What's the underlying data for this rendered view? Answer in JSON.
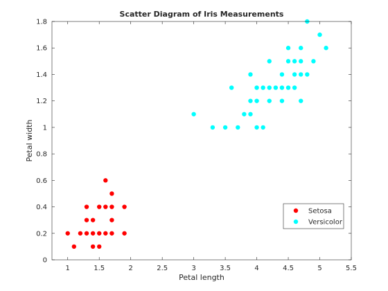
{
  "chart_data": {
    "type": "scatter",
    "title": "Scatter Diagram of Iris Measurements",
    "xlabel": "Petal length",
    "ylabel": "Petal width",
    "xlim": [
      0.75,
      5.5
    ],
    "ylim": [
      0,
      1.8
    ],
    "xticks": [
      "1",
      "1.5",
      "2",
      "2.5",
      "3",
      "3.5",
      "4",
      "4.5",
      "5",
      "5.5"
    ],
    "yticks": [
      "0",
      "0.2",
      "0.4",
      "0.6",
      "0.8",
      "1",
      "1.2",
      "1.4",
      "1.6",
      "1.8"
    ],
    "grid": false,
    "legend_position": "bottom-right",
    "series": [
      {
        "name": "Setosa",
        "color": "#ff0000",
        "points": [
          [
            1.0,
            0.2
          ],
          [
            1.1,
            0.1
          ],
          [
            1.2,
            0.2
          ],
          [
            1.3,
            0.2
          ],
          [
            1.3,
            0.3
          ],
          [
            1.3,
            0.4
          ],
          [
            1.4,
            0.1
          ],
          [
            1.4,
            0.2
          ],
          [
            1.4,
            0.3
          ],
          [
            1.5,
            0.1
          ],
          [
            1.5,
            0.2
          ],
          [
            1.5,
            0.4
          ],
          [
            1.6,
            0.2
          ],
          [
            1.6,
            0.4
          ],
          [
            1.6,
            0.6
          ],
          [
            1.7,
            0.2
          ],
          [
            1.7,
            0.3
          ],
          [
            1.7,
            0.4
          ],
          [
            1.7,
            0.5
          ],
          [
            1.9,
            0.2
          ],
          [
            1.9,
            0.4
          ]
        ]
      },
      {
        "name": "Versicolor",
        "color": "#00ffff",
        "points": [
          [
            3.0,
            1.1
          ],
          [
            3.3,
            1.0
          ],
          [
            3.5,
            1.0
          ],
          [
            3.6,
            1.3
          ],
          [
            3.7,
            1.0
          ],
          [
            3.8,
            1.1
          ],
          [
            3.9,
            1.1
          ],
          [
            3.9,
            1.2
          ],
          [
            3.9,
            1.4
          ],
          [
            4.0,
            1.0
          ],
          [
            4.0,
            1.2
          ],
          [
            4.0,
            1.3
          ],
          [
            4.1,
            1.0
          ],
          [
            4.1,
            1.3
          ],
          [
            4.2,
            1.2
          ],
          [
            4.2,
            1.3
          ],
          [
            4.2,
            1.5
          ],
          [
            4.3,
            1.3
          ],
          [
            4.4,
            1.2
          ],
          [
            4.4,
            1.3
          ],
          [
            4.4,
            1.4
          ],
          [
            4.5,
            1.3
          ],
          [
            4.5,
            1.5
          ],
          [
            4.5,
            1.6
          ],
          [
            4.6,
            1.3
          ],
          [
            4.6,
            1.4
          ],
          [
            4.6,
            1.5
          ],
          [
            4.7,
            1.2
          ],
          [
            4.7,
            1.4
          ],
          [
            4.7,
            1.5
          ],
          [
            4.7,
            1.6
          ],
          [
            4.8,
            1.4
          ],
          [
            4.8,
            1.8
          ],
          [
            4.9,
            1.5
          ],
          [
            5.0,
            1.7
          ],
          [
            5.1,
            1.6
          ]
        ]
      }
    ]
  }
}
